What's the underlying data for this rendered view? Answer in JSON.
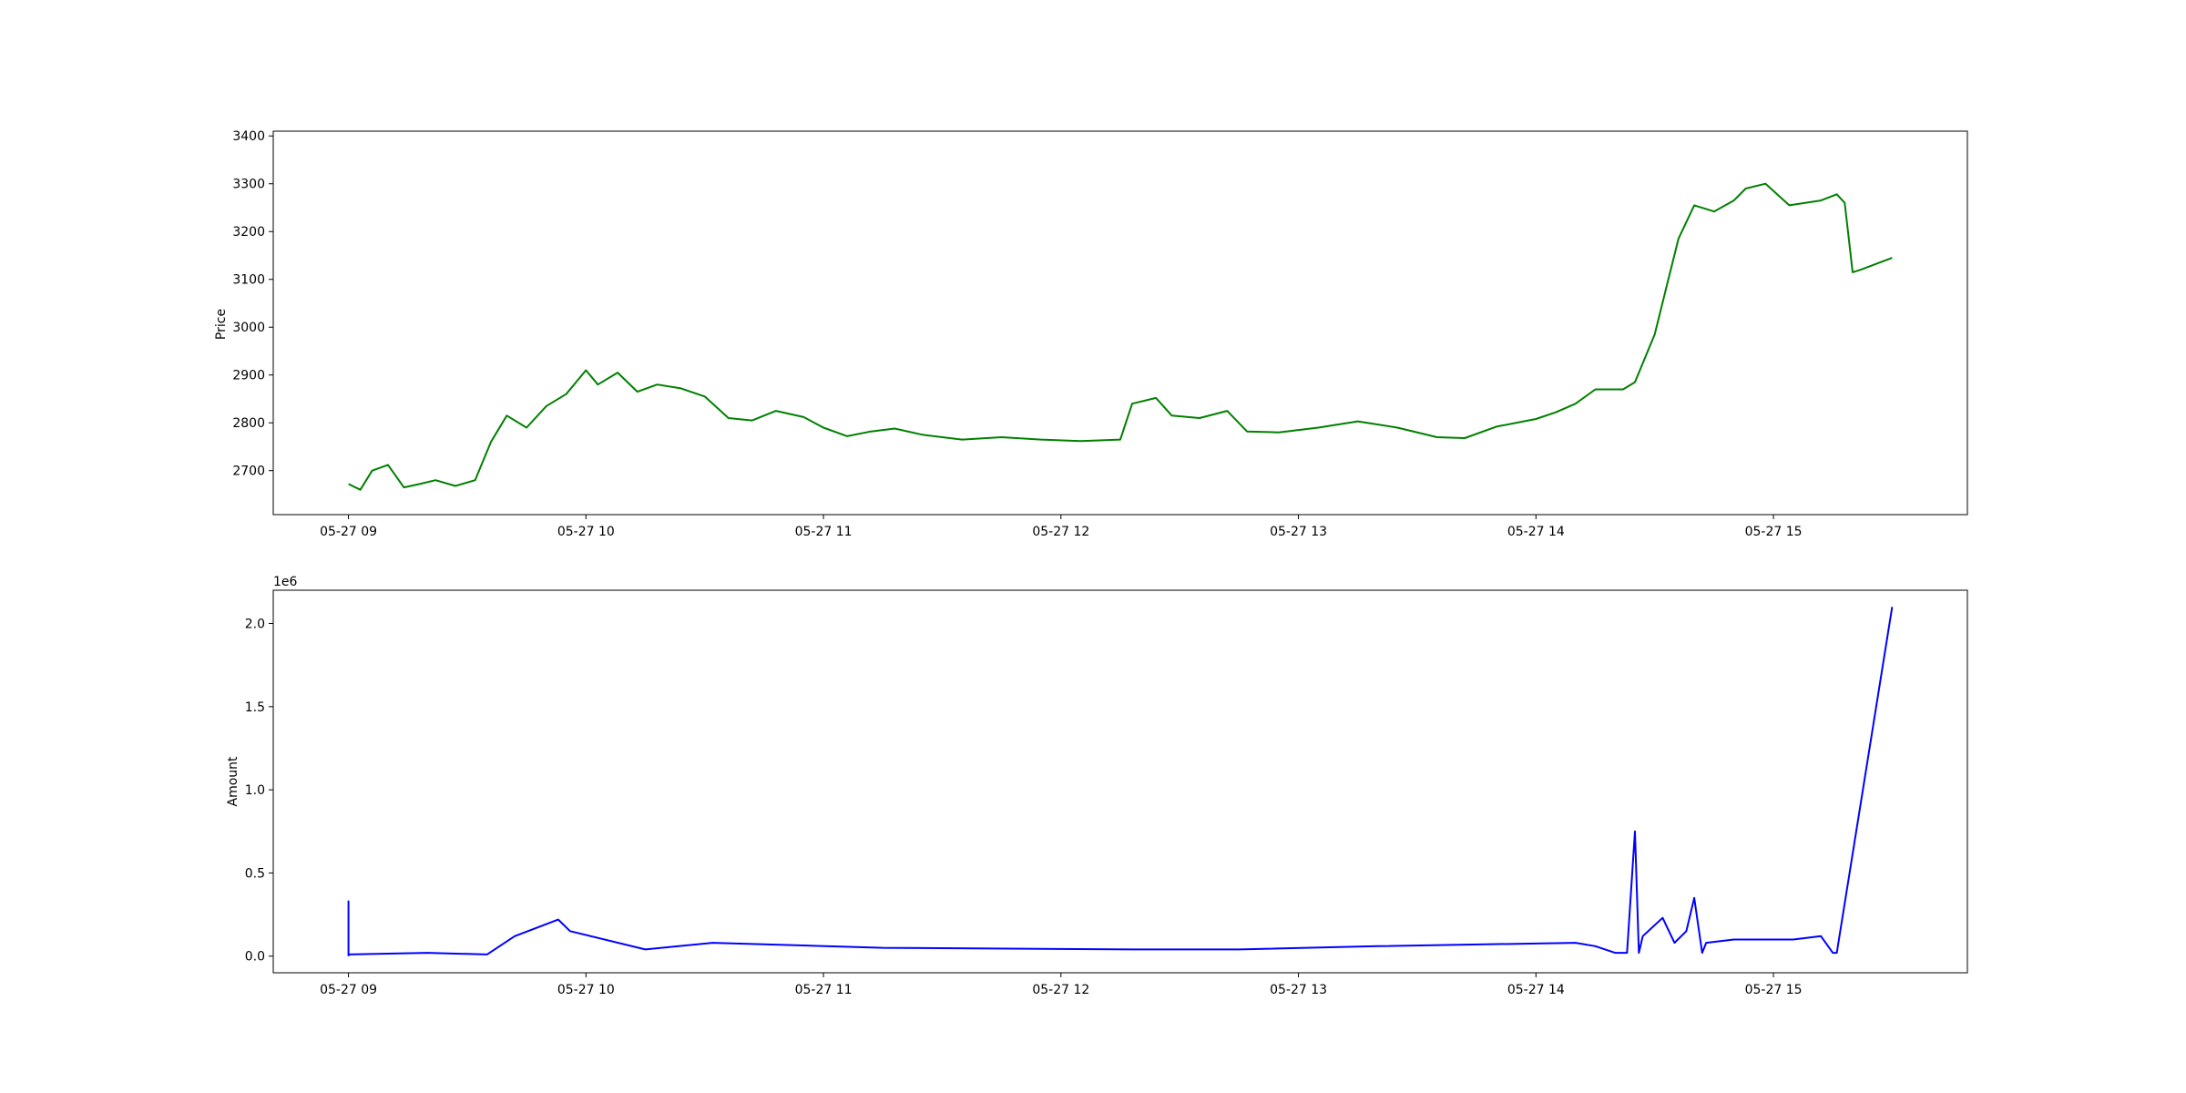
{
  "chart_data": [
    {
      "type": "line",
      "title": "",
      "xlabel": "",
      "ylabel": "Price",
      "x_tick_labels": [
        "05-27 09",
        "05-27 10",
        "05-27 11",
        "05-27 12",
        "05-27 13",
        "05-27 14",
        "05-27 15"
      ],
      "x_ticks": [
        "05-27 09:00",
        "05-27 10:00",
        "05-27 11:00",
        "05-27 12:00",
        "05-27 13:00",
        "05-27 14:00",
        "05-27 15:00"
      ],
      "xlim": [
        "05-27 08:41",
        "05-27 15:49"
      ],
      "y_tick_labels": [
        "2700",
        "2800",
        "2900",
        "3000",
        "3100",
        "3200",
        "3300",
        "3400"
      ],
      "y_ticks": [
        2700,
        2800,
        2900,
        3000,
        3100,
        3200,
        3300,
        3400
      ],
      "ylim": [
        2608,
        3410
      ],
      "grid": false,
      "series": [
        {
          "color": "#008000",
          "x": [
            "05-27 09:00",
            "05-27 09:03",
            "05-27 09:06",
            "05-27 09:10",
            "05-27 09:14",
            "05-27 09:18",
            "05-27 09:22",
            "05-27 09:27",
            "05-27 09:32",
            "05-27 09:36",
            "05-27 09:40",
            "05-27 09:45",
            "05-27 09:50",
            "05-27 09:55",
            "05-27 10:00",
            "05-27 10:03",
            "05-27 10:08",
            "05-27 10:13",
            "05-27 10:18",
            "05-27 10:24",
            "05-27 10:30",
            "05-27 10:36",
            "05-27 10:42",
            "05-27 10:48",
            "05-27 10:55",
            "05-27 11:00",
            "05-27 11:06",
            "05-27 11:12",
            "05-27 11:18",
            "05-27 11:25",
            "05-27 11:35",
            "05-27 11:45",
            "05-27 11:55",
            "05-27 12:05",
            "05-27 12:15",
            "05-27 12:18",
            "05-27 12:24",
            "05-27 12:28",
            "05-27 12:35",
            "05-27 12:42",
            "05-27 12:47",
            "05-27 12:55",
            "05-27 13:05",
            "05-27 13:15",
            "05-27 13:25",
            "05-27 13:35",
            "05-27 13:42",
            "05-27 13:50",
            "05-27 14:00",
            "05-27 14:05",
            "05-27 14:10",
            "05-27 14:15",
            "05-27 14:22",
            "05-27 14:25",
            "05-27 14:30",
            "05-27 14:33",
            "05-27 14:36",
            "05-27 14:40",
            "05-27 14:45",
            "05-27 14:50",
            "05-27 14:53",
            "05-27 14:58",
            "05-27 15:04",
            "05-27 15:08",
            "05-27 15:12",
            "05-27 15:16",
            "05-27 15:18",
            "05-27 15:20",
            "05-27 15:22",
            "05-27 15:30"
          ],
          "y": [
            2672,
            2660,
            2700,
            2712,
            2665,
            2672,
            2680,
            2668,
            2680,
            2760,
            2815,
            2790,
            2835,
            2860,
            2910,
            2880,
            2905,
            2865,
            2880,
            2872,
            2855,
            2810,
            2805,
            2825,
            2812,
            2790,
            2772,
            2782,
            2788,
            2775,
            2765,
            2770,
            2765,
            2762,
            2765,
            2840,
            2852,
            2815,
            2810,
            2825,
            2782,
            2780,
            2790,
            2803,
            2790,
            2770,
            2768,
            2792,
            2808,
            2822,
            2840,
            2870,
            2870,
            2885,
            2985,
            3085,
            3185,
            3255,
            3242,
            3265,
            3290,
            3300,
            3255,
            3260,
            3265,
            3278,
            3260,
            3115,
            3120,
            3145
          ]
        }
      ]
    },
    {
      "type": "line",
      "title": "",
      "xlabel": "",
      "ylabel": "Amount",
      "y_offset_label": "1e6",
      "x_tick_labels": [
        "05-27 09",
        "05-27 10",
        "05-27 11",
        "05-27 12",
        "05-27 13",
        "05-27 14",
        "05-27 15"
      ],
      "x_ticks": [
        "05-27 09:00",
        "05-27 10:00",
        "05-27 11:00",
        "05-27 12:00",
        "05-27 13:00",
        "05-27 14:00",
        "05-27 15:00"
      ],
      "xlim": [
        "05-27 08:41",
        "05-27 15:49"
      ],
      "y_tick_labels": [
        "0.0",
        "0.5",
        "1.0",
        "1.5",
        "2.0"
      ],
      "y_ticks": [
        0.0,
        0.5,
        1.0,
        1.5,
        2.0
      ],
      "ylim": [
        -0.1,
        2.2
      ],
      "grid": false,
      "series": [
        {
          "color": "#0000ff",
          "x": [
            "05-27 09:00",
            "05-27 09:00",
            "05-27 09:00",
            "05-27 09:20",
            "05-27 09:35",
            "05-27 09:42",
            "05-27 09:53",
            "05-27 09:56",
            "05-27 10:15",
            "05-27 10:32",
            "05-27 11:15",
            "05-27 12:18",
            "05-27 12:45",
            "05-27 13:20",
            "05-27 14:10",
            "05-27 14:15",
            "05-27 14:20",
            "05-27 14:23",
            "05-27 14:25",
            "05-27 14:26",
            "05-27 14:27",
            "05-27 14:32",
            "05-27 14:35",
            "05-27 14:38",
            "05-27 14:40",
            "05-27 14:42",
            "05-27 14:43",
            "05-27 14:50",
            "05-27 15:05",
            "05-27 15:12",
            "05-27 15:15",
            "05-27 15:16",
            "05-27 15:30"
          ],
          "y": [
            0.0,
            0.33,
            0.01,
            0.02,
            0.01,
            0.12,
            0.22,
            0.15,
            0.04,
            0.08,
            0.05,
            0.04,
            0.04,
            0.06,
            0.08,
            0.06,
            0.02,
            0.02,
            0.75,
            0.02,
            0.12,
            0.23,
            0.08,
            0.15,
            0.35,
            0.02,
            0.08,
            0.1,
            0.1,
            0.12,
            0.02,
            0.02,
            2.1
          ]
        }
      ]
    }
  ]
}
